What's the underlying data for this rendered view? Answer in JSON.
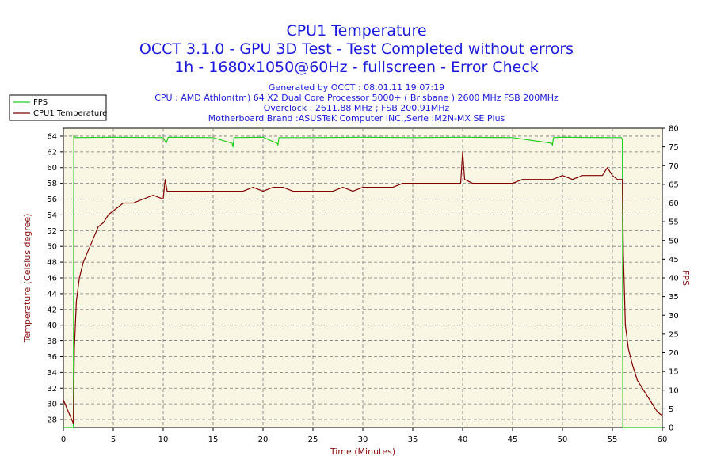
{
  "chart_data": {
    "type": "line",
    "title": "CPU1 Temperature",
    "subtitle": [
      "OCCT 3.1.0 - GPU 3D Test - Test Completed without errors",
      "1h - 1680x1050@60Hz - fullscreen - Error Check"
    ],
    "info": [
      "Generated by OCCT : 08.01.11 19:07:19",
      "CPU : AMD Athlon(tm) 64 X2 Dual Core Processor 5000+ ( Brisbane ) 2600 MHz FSB 200MHz",
      "Overclock : 2611.88 MHz ; FSB 200.91MHz",
      "Motherboard Brand :ASUSTeK Computer INC.,Serie :M2N-MX SE Plus"
    ],
    "xlabel": "Time (Minutes)",
    "ylabel": "Temperature (Celsius degree)",
    "y2label": "FPS",
    "xlim": [
      0,
      60
    ],
    "ylim": [
      27,
      65
    ],
    "y2lim": [
      0,
      80
    ],
    "xticks": [
      0,
      5,
      10,
      15,
      20,
      25,
      30,
      35,
      40,
      45,
      50,
      55,
      60
    ],
    "yticks": [
      28,
      30,
      32,
      34,
      36,
      38,
      40,
      42,
      44,
      46,
      48,
      50,
      52,
      54,
      56,
      58,
      60,
      62,
      64
    ],
    "y2ticks": [
      0,
      5,
      10,
      15,
      20,
      25,
      30,
      35,
      40,
      45,
      50,
      55,
      60,
      65,
      70,
      75,
      80
    ],
    "grid": true,
    "legend_position": "top-left",
    "series": [
      {
        "name": "FPS",
        "axis": "right",
        "color": "#22cc22",
        "x": [
          0.0,
          1.0,
          1.05,
          1.2,
          5,
          10,
          10.3,
          10.5,
          15,
          16.9,
          17.0,
          17.1,
          20,
          21.4,
          21.5,
          21.6,
          25,
          30,
          35,
          40,
          45,
          48.9,
          49.0,
          49.1,
          50,
          55,
          55.9,
          56.0,
          56.05,
          60.0
        ],
        "y": [
          0,
          0,
          78,
          77.5,
          77.6,
          77.5,
          76.0,
          77.6,
          77.5,
          76.0,
          75.0,
          77.5,
          77.6,
          76.0,
          75.5,
          77.5,
          77.5,
          77.6,
          77.5,
          77.6,
          77.5,
          76.0,
          75.5,
          77.5,
          77.6,
          77.5,
          77.5,
          77.0,
          0,
          0
        ]
      },
      {
        "name": "CPU1 Temperature",
        "axis": "left",
        "color": "#800000",
        "x": [
          0.0,
          0.5,
          1.0,
          1.1,
          1.3,
          1.6,
          2.0,
          2.5,
          3.0,
          3.5,
          4.0,
          4.5,
          5.0,
          5.5,
          6.0,
          7.0,
          8.0,
          9.0,
          10.0,
          10.2,
          10.4,
          11.0,
          12.0,
          13.0,
          14.0,
          15.0,
          16.0,
          17.0,
          18.0,
          19.0,
          20.0,
          21.0,
          22.0,
          23.0,
          24.0,
          25.0,
          26.0,
          27.0,
          28.0,
          29.0,
          30.0,
          31.0,
          32.0,
          33.0,
          34.0,
          35.0,
          36.0,
          37.0,
          38.0,
          39.0,
          39.8,
          40.0,
          40.2,
          41.0,
          42.0,
          43.0,
          44.0,
          45.0,
          46.0,
          47.0,
          48.0,
          49.0,
          50.0,
          51.0,
          52.0,
          53.0,
          54.0,
          54.5,
          55.0,
          55.5,
          56.0,
          56.1,
          56.3,
          56.6,
          57.0,
          57.5,
          58.0,
          58.5,
          59.0,
          59.5,
          60.0
        ],
        "y": [
          30.5,
          29.0,
          27.5,
          37.0,
          43.0,
          46.0,
          48.0,
          49.5,
          51.0,
          52.5,
          53.0,
          54.0,
          54.5,
          55.0,
          55.5,
          55.5,
          56.0,
          56.5,
          56.0,
          58.5,
          57.0,
          57.0,
          57.0,
          57.0,
          57.0,
          57.0,
          57.0,
          57.0,
          57.0,
          57.5,
          57.0,
          57.5,
          57.5,
          57.0,
          57.0,
          57.0,
          57.0,
          57.0,
          57.5,
          57.0,
          57.5,
          57.5,
          57.5,
          57.5,
          58.0,
          58.0,
          58.0,
          58.0,
          58.0,
          58.0,
          58.0,
          62.0,
          58.5,
          58.0,
          58.0,
          58.0,
          58.0,
          58.0,
          58.5,
          58.5,
          58.5,
          58.5,
          59.0,
          58.5,
          59.0,
          59.0,
          59.0,
          60.0,
          59.0,
          58.5,
          58.5,
          49.0,
          40.0,
          37.0,
          35.0,
          33.0,
          32.0,
          31.0,
          30.0,
          29.0,
          28.5
        ]
      }
    ]
  }
}
